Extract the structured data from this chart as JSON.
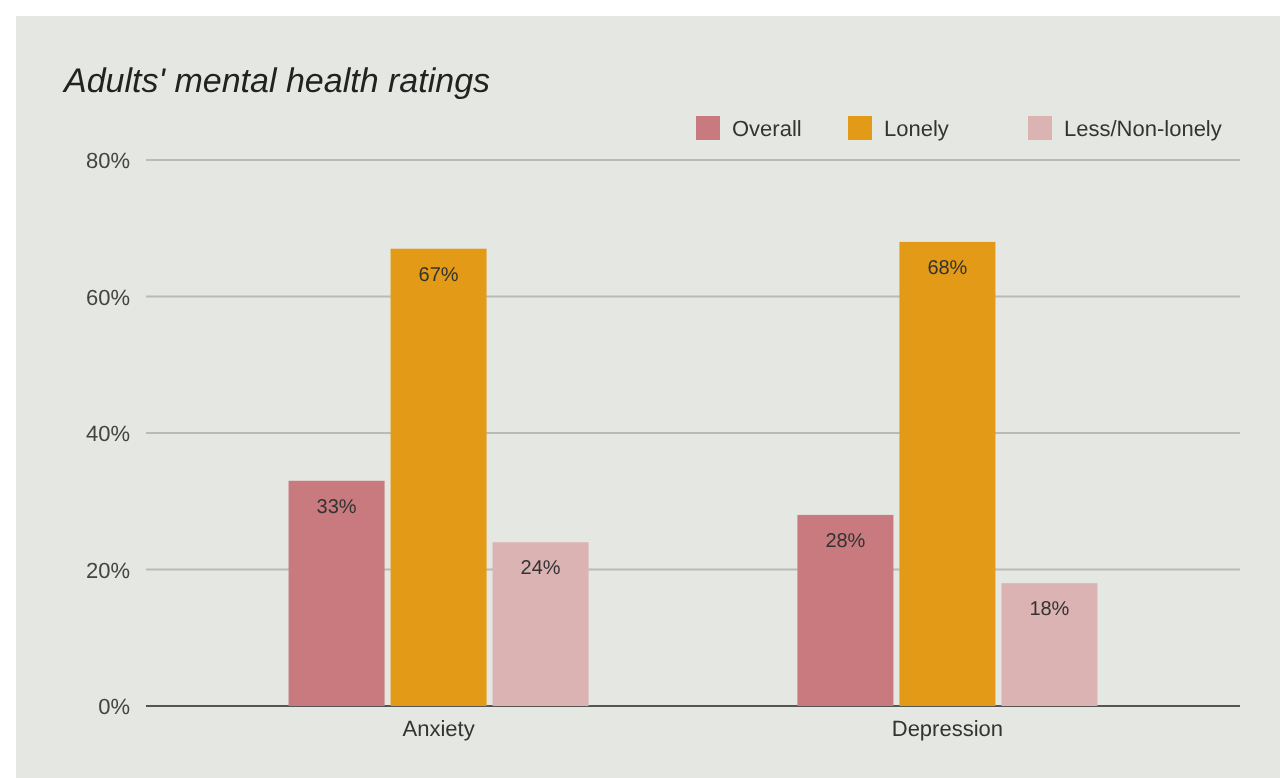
{
  "chart_data": {
    "type": "bar",
    "title": "Adults' mental health ratings",
    "categories": [
      "Anxiety",
      "Depression"
    ],
    "series": [
      {
        "name": "Overall",
        "color": "#c97a7e",
        "values": [
          33,
          28
        ]
      },
      {
        "name": "Lonely",
        "color": "#e39b17",
        "values": [
          67,
          68
        ]
      },
      {
        "name": "Less/Non-lonely",
        "color": "#dcb3b3",
        "values": [
          24,
          18
        ]
      }
    ],
    "ylim": [
      0,
      80
    ],
    "yticks": [
      {
        "value": 0,
        "label": "0%"
      },
      {
        "value": 20,
        "label": "20%"
      },
      {
        "value": 40,
        "label": "40%"
      },
      {
        "value": 60,
        "label": "60%"
      },
      {
        "value": 80,
        "label": "80%"
      }
    ],
    "grid": "y",
    "legend": "top right",
    "value_labels": [
      [
        "33%",
        "28%"
      ],
      [
        "67%",
        "68%"
      ],
      [
        "24%",
        "18%"
      ]
    ]
  }
}
